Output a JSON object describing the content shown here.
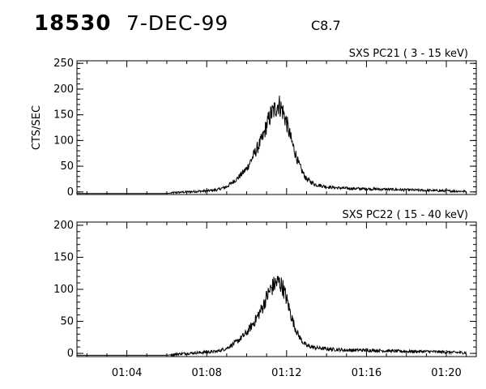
{
  "header": {
    "event_number": "18530",
    "date": "7-DEC-99",
    "goes_class": "C8.7"
  },
  "chart_data": [
    {
      "type": "line",
      "title": "SXS PC21  (  3 - 15 keV)",
      "ylabel": "CTS/SEC",
      "xlabel": "",
      "y_ticks": [
        0,
        50,
        100,
        150,
        200,
        250
      ],
      "ylim": [
        -5,
        255
      ],
      "x_unit": "minutes since 01:00 UT",
      "xlim": [
        1.5,
        21.5
      ],
      "x_ticks": [
        "01:04",
        "01:08",
        "01:12",
        "01:16",
        "01:20"
      ],
      "grid": false,
      "series": [
        {
          "x": [
            1.5,
            3.0,
            4.5,
            6.0,
            6.5,
            7.0,
            7.5,
            8.0,
            8.5,
            9.0,
            9.5,
            10.0,
            10.4,
            10.8,
            11.0,
            11.2,
            11.4,
            11.6,
            11.8,
            12.0,
            12.2,
            12.4,
            12.6,
            12.8,
            13.0,
            13.4,
            14.0,
            14.5,
            15.0,
            16.0,
            17.0,
            18.0,
            19.0,
            20.0,
            21.0
          ],
          "values": [
            -3,
            -3,
            -3,
            -3,
            -1,
            0,
            1,
            2,
            4,
            10,
            25,
            45,
            75,
            105,
            130,
            150,
            160,
            172,
            158,
            135,
            105,
            80,
            55,
            38,
            25,
            15,
            10,
            8,
            7,
            6,
            5,
            4,
            3,
            2,
            1
          ]
        }
      ]
    },
    {
      "type": "line",
      "title": "SXS PC22  ( 15 - 40 keV)",
      "ylabel": "",
      "xlabel": "",
      "y_ticks": [
        0,
        50,
        100,
        150,
        200
      ],
      "ylim": [
        -5,
        205
      ],
      "x_unit": "minutes since 01:00 UT",
      "xlim": [
        1.5,
        21.5
      ],
      "x_ticks": [
        "01:04",
        "01:08",
        "01:12",
        "01:16",
        "01:20"
      ],
      "grid": false,
      "series": [
        {
          "x": [
            1.5,
            3.0,
            4.5,
            6.0,
            6.5,
            7.0,
            7.5,
            8.0,
            8.5,
            9.0,
            9.5,
            10.0,
            10.4,
            10.8,
            11.0,
            11.2,
            11.4,
            11.6,
            11.8,
            12.0,
            12.2,
            12.4,
            12.6,
            12.8,
            13.0,
            13.4,
            14.0,
            14.5,
            15.0,
            16.0,
            17.0,
            18.0,
            19.0,
            20.0,
            21.0
          ],
          "values": [
            -3,
            -3,
            -3,
            -3,
            -1,
            0,
            1,
            2,
            3,
            8,
            18,
            32,
            50,
            72,
            88,
            100,
            108,
            112,
            104,
            85,
            62,
            42,
            28,
            18,
            12,
            9,
            7,
            6,
            5,
            5,
            4,
            3,
            3,
            2,
            1
          ]
        }
      ]
    }
  ]
}
